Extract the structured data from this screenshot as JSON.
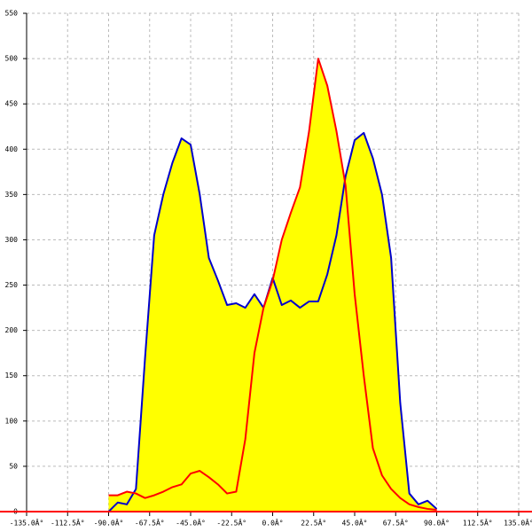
{
  "chart_data": {
    "type": "area",
    "x": [
      -90,
      -85,
      -80,
      -75,
      -70,
      -65,
      -60,
      -55,
      -50,
      -45,
      -40,
      -35,
      -30,
      -25,
      -20,
      -15,
      -10,
      -5,
      0,
      5,
      10,
      15,
      20,
      25,
      30,
      35,
      40,
      45,
      50,
      55,
      60,
      65,
      70,
      75,
      80,
      85,
      90
    ],
    "series": [
      {
        "color": "#0000cc",
        "fill": "#ffff00",
        "values": [
          0,
          10,
          8,
          25,
          170,
          305,
          350,
          385,
          412,
          405,
          350,
          280,
          255,
          228,
          230,
          225,
          240,
          225,
          258,
          228,
          233,
          225,
          232,
          232,
          262,
          305,
          370,
          410,
          418,
          390,
          350,
          280,
          120,
          20,
          8,
          12,
          3
        ]
      },
      {
        "color": "#ff0000",
        "fill": "#ffff00",
        "values": [
          18,
          18,
          22,
          20,
          15,
          18,
          22,
          27,
          30,
          42,
          45,
          38,
          30,
          20,
          22,
          80,
          175,
          225,
          255,
          300,
          330,
          358,
          420,
          500,
          470,
          420,
          360,
          240,
          150,
          70,
          40,
          25,
          15,
          8,
          5,
          3,
          2
        ]
      }
    ],
    "xlim": [
      -135,
      135
    ],
    "ylim": [
      0,
      550
    ],
    "xticks": [
      {
        "value": -135,
        "label": "-135.0Â°"
      },
      {
        "value": -112.5,
        "label": "-112.5Â°"
      },
      {
        "value": -90,
        "label": "-90.0Â°"
      },
      {
        "value": -67.5,
        "label": "-67.5Â°"
      },
      {
        "value": -45,
        "label": "-45.0Â°"
      },
      {
        "value": -22.5,
        "label": "-22.5Â°"
      },
      {
        "value": 0,
        "label": "0.0Â°"
      },
      {
        "value": 22.5,
        "label": "22.5Â°"
      },
      {
        "value": 45,
        "label": "45.0Â°"
      },
      {
        "value": 67.5,
        "label": "67.5Â°"
      },
      {
        "value": 90,
        "label": "90.0Â°"
      },
      {
        "value": 112.5,
        "label": "112.5Â°"
      },
      {
        "value": 135,
        "label": "135.0Â°"
      }
    ],
    "yticks": [
      0,
      50,
      100,
      150,
      200,
      250,
      300,
      350,
      400,
      450,
      500,
      550
    ],
    "grid": true
  }
}
